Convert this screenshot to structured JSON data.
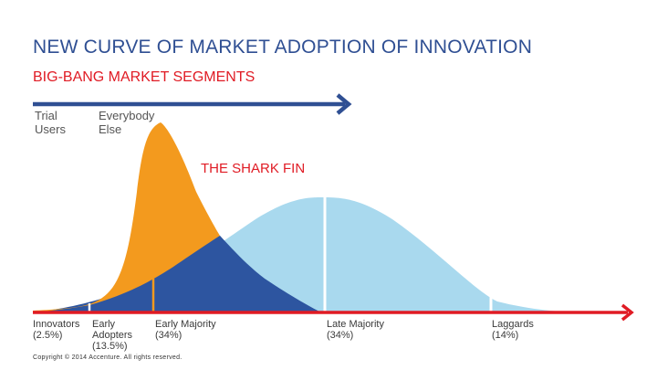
{
  "title": "NEW CURVE OF MARKET ADOPTION OF INNOVATION",
  "subtitle": "BIG-BANG MARKET SEGMENTS",
  "segments": {
    "trial_users": "Trial\nUsers",
    "everybody_else": "Everybody\nElse"
  },
  "shark_fin_label": "THE SHARK FIN",
  "categories": [
    {
      "name": "Innovators",
      "pct": "(2.5%)"
    },
    {
      "name": "Early\nAdopters",
      "pct": "(13.5%)"
    },
    {
      "name": "Early Majority",
      "pct": "(34%)"
    },
    {
      "name": "Late Majority",
      "pct": "(34%)"
    },
    {
      "name": "Laggards",
      "pct": "(14%)"
    }
  ],
  "copyright": "Copyright © 2014 Accenture. All rights reserved.",
  "colors": {
    "title": "#2f4f93",
    "accent_red": "#e01b24",
    "arrow_blue": "#2f4f93",
    "shark_fin_orange": "#f39a1e",
    "dark_blue_area": "#2d55a0",
    "light_blue_area": "#a9d9ee"
  }
}
